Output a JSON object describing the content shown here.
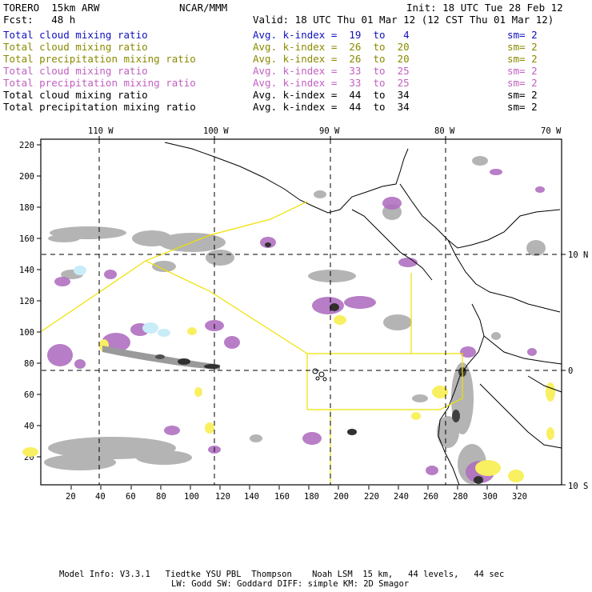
{
  "header": {
    "title": "TORERO  15km ARW",
    "org": "NCAR/MMM",
    "init": "Init: 18 UTC Tue 28 Feb 12",
    "fcst": "Fcst:   48 h",
    "valid": "Valid: 18 UTC Thu 01 Mar 12 (12 CST Thu 01 Mar 12)"
  },
  "legend": [
    {
      "field": "Total cloud mixing ratio",
      "index": "Avg. k-index =  19  to   4",
      "sm": "sm= 2",
      "color": "#1010c0"
    },
    {
      "field": "Total cloud mixing ratio",
      "index": "Avg. k-index =  26  to  20",
      "sm": "sm= 2",
      "color": "#8a8a00"
    },
    {
      "field": "Total precipitation mixing ratio",
      "index": "Avg. k-index =  26  to  20",
      "sm": "sm= 2",
      "color": "#8a8a00"
    },
    {
      "field": "Total cloud mixing ratio",
      "index": "Avg. k-index =  33  to  25",
      "sm": "sm= 2",
      "color": "#c060c0"
    },
    {
      "field": "Total precipitation mixing ratio",
      "index": "Avg. k-index =  33  to  25",
      "sm": "sm= 2",
      "color": "#c060c0"
    },
    {
      "field": "Total cloud mixing ratio",
      "index": "Avg. k-index =  44  to  34",
      "sm": "sm= 2",
      "color": "#000000"
    },
    {
      "field": "Total precipitation mixing ratio",
      "index": "Avg. k-index =  44  to  34",
      "sm": "sm= 2",
      "color": "#000000"
    }
  ],
  "map": {
    "top_ticks": [
      "110 W",
      "100 W",
      "90 W",
      "80 W",
      "70 W"
    ],
    "right_ticks": [
      "10 N",
      "0",
      "10 S"
    ],
    "left_ticks": [
      "220",
      "200",
      "180",
      "160",
      "140",
      "120",
      "100",
      "80",
      "60",
      "40",
      "20"
    ],
    "bottom_ticks": [
      "20",
      "40",
      "60",
      "80",
      "100",
      "120",
      "140",
      "160",
      "180",
      "200",
      "220",
      "240",
      "260",
      "280",
      "300",
      "320"
    ],
    "colors": {
      "gray": "#b4b4b4",
      "purple": "#b070c0",
      "yellow": "#f8f060",
      "lightblue": "#c8ecf8",
      "domain": "#f0e000",
      "dark": "#303030"
    }
  },
  "footer": {
    "line1": "Model Info: V3.3.1   Tiedtke YSU PBL  Thompson    Noah LSM  15 km,   44 levels,   44 sec",
    "line2": "LW: Godd SW: Goddard DIFF: simple KM: 2D Smagor"
  }
}
